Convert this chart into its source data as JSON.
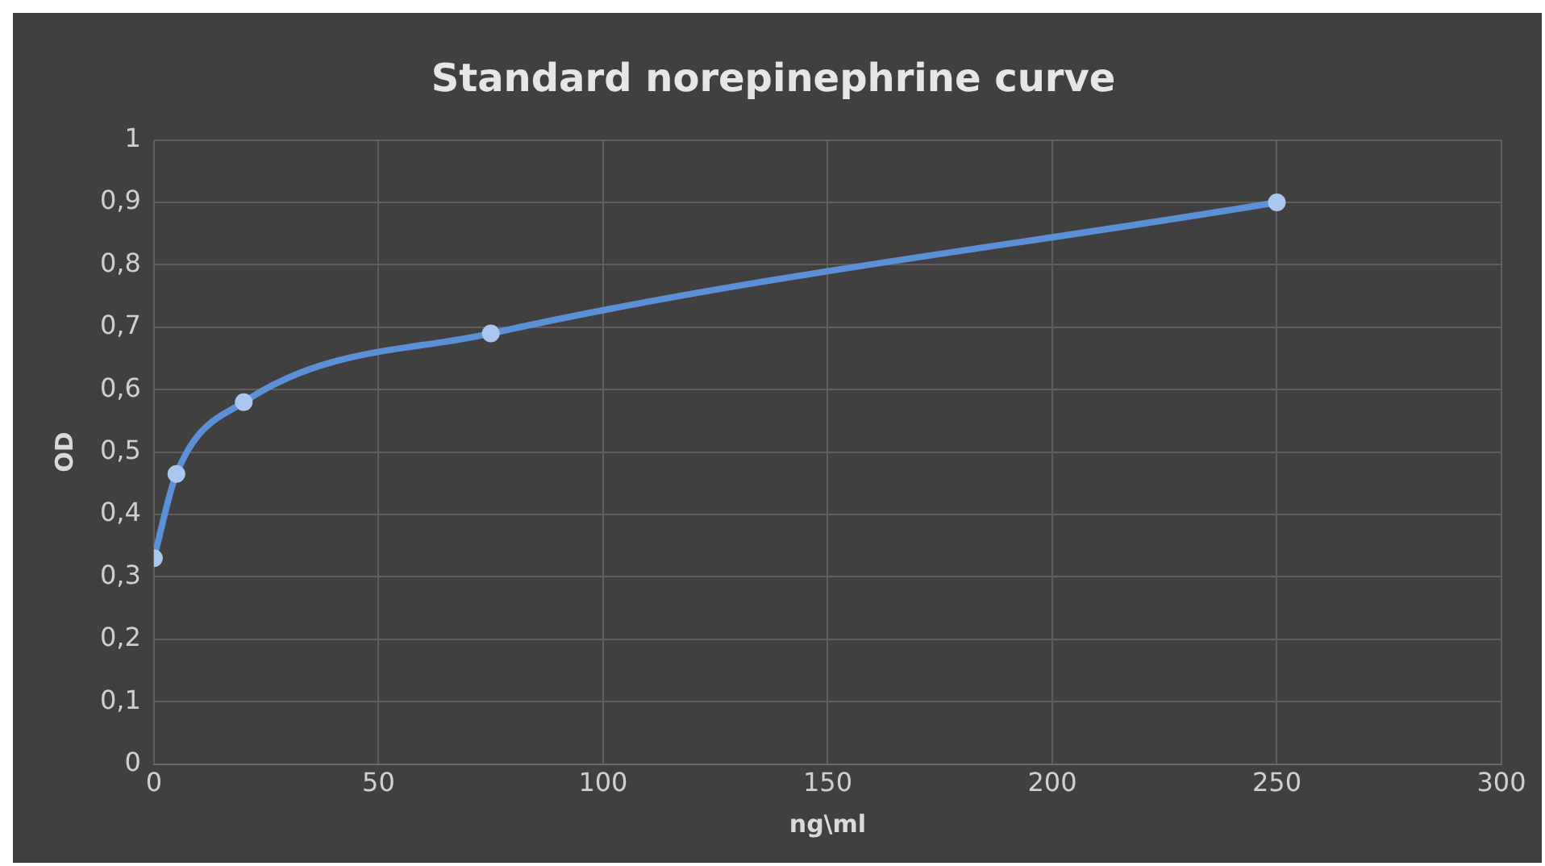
{
  "chart_data": {
    "type": "line",
    "title": "Standard norepinephrine curve",
    "xlabel": "ng\\ml",
    "ylabel": "OD",
    "x": [
      0,
      5,
      20,
      75,
      250
    ],
    "series": [
      {
        "color": "#5b8fd6",
        "values": [
          0.33,
          0.465,
          0.58,
          0.69,
          0.9
        ]
      }
    ],
    "xlim": [
      0,
      300
    ],
    "xticks": [
      0,
      50,
      100,
      150,
      200,
      250,
      300
    ],
    "ylim": [
      0,
      1
    ],
    "yticks": [
      {
        "value": 0,
        "label": "0"
      },
      {
        "value": 0.1,
        "label": "0,1"
      },
      {
        "value": 0.2,
        "label": "0,2"
      },
      {
        "value": 0.3,
        "label": "0,3"
      },
      {
        "value": 0.4,
        "label": "0,4"
      },
      {
        "value": 0.5,
        "label": "0,5"
      },
      {
        "value": 0.6,
        "label": "0,6"
      },
      {
        "value": 0.7,
        "label": "0,7"
      },
      {
        "value": 0.8,
        "label": "0,8"
      },
      {
        "value": 0.9,
        "label": "0,9"
      },
      {
        "value": 1,
        "label": "1"
      }
    ],
    "grid": true,
    "legend": false,
    "marker": "circle",
    "line_style": "solid"
  }
}
